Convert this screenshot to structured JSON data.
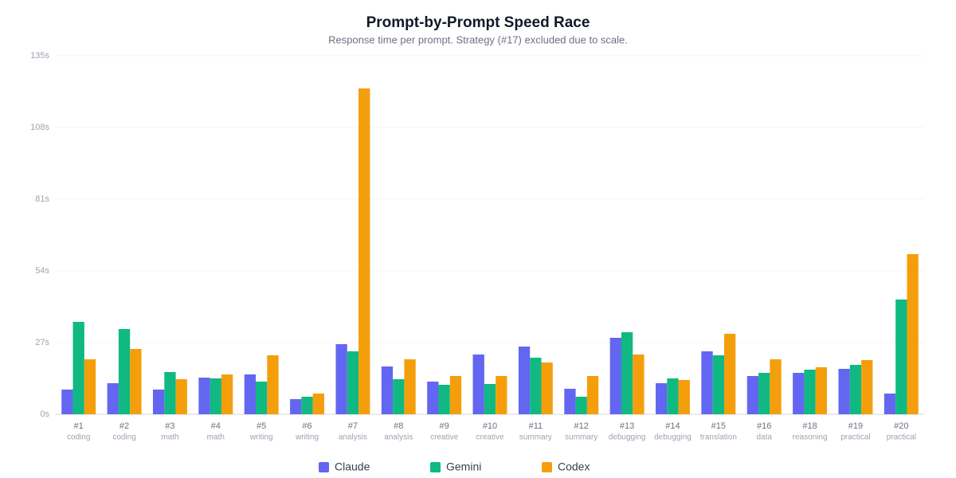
{
  "chart_data": {
    "type": "bar",
    "title": "Prompt-by-Prompt Speed Race",
    "subtitle": "Response time per prompt. Strategy (#17) excluded due to scale.",
    "categories": [
      "#1",
      "#2",
      "#3",
      "#4",
      "#5",
      "#6",
      "#7",
      "#8",
      "#9",
      "#10",
      "#11",
      "#12",
      "#13",
      "#14",
      "#15",
      "#16",
      "#18",
      "#19",
      "#20"
    ],
    "subcategories": [
      "coding",
      "coding",
      "math",
      "math",
      "writing",
      "writing",
      "analysis",
      "analysis",
      "creative",
      "creative",
      "summary",
      "summary",
      "debugging",
      "debugging",
      "translation",
      "data",
      "reasoning",
      "practical",
      "practical"
    ],
    "series": [
      {
        "name": "Claude",
        "color": "#6366f1",
        "values": [
          9.3,
          11.7,
          9.3,
          13.8,
          15,
          5.7,
          26.4,
          18,
          12.3,
          22.5,
          25.5,
          9.6,
          28.8,
          11.7,
          23.7,
          14.4,
          15.6,
          17.1,
          7.8
        ]
      },
      {
        "name": "Gemini",
        "color": "#10b981",
        "values": [
          34.8,
          32.1,
          15.9,
          13.5,
          12.3,
          6.6,
          23.7,
          13.2,
          11.1,
          11.4,
          21.3,
          6.6,
          30.9,
          13.5,
          22.2,
          15.6,
          16.8,
          18.6,
          43.2
        ]
      },
      {
        "name": "Codex",
        "color": "#f59e0b",
        "values": [
          20.7,
          24.6,
          13.2,
          15,
          22.2,
          7.8,
          122.7,
          20.7,
          14.4,
          14.4,
          19.5,
          14.4,
          22.5,
          12.9,
          30.3,
          20.7,
          17.7,
          20.4,
          60.3
        ]
      }
    ],
    "ylim": [
      0,
      135
    ],
    "yticks": [
      {
        "value": 0,
        "label": "0s"
      },
      {
        "value": 27,
        "label": "27s"
      },
      {
        "value": 54,
        "label": "54s"
      },
      {
        "value": 81,
        "label": "81s"
      },
      {
        "value": 108,
        "label": "108s"
      },
      {
        "value": 135,
        "label": "135s"
      }
    ],
    "grid": true,
    "legend": "bottom"
  }
}
